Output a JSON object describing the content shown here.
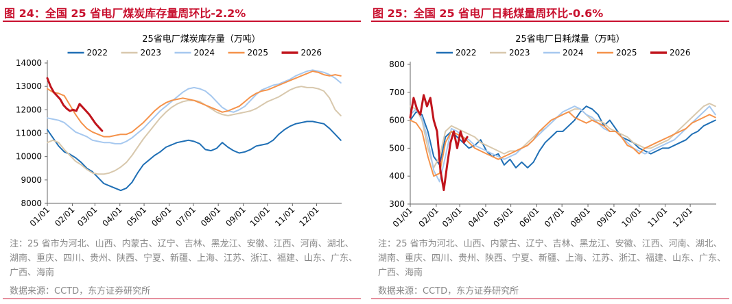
{
  "panels": [
    {
      "figure_title": "图 24：全国 25 省电厂煤炭库存量周环比-2.2%",
      "note": "注：25 省市为河北、山西、内蒙古、辽宁、吉林、黑龙江、安徽、江西、河南、湖北、湖南、重庆、四川、贵州、陕西、宁夏、新疆、上海、江苏、浙江、福建、山东、广东、广西、海南",
      "source": "数据来源：CCTD，东方证券研究所"
    },
    {
      "figure_title": "图 25：全国 25 省电厂日耗煤量周环比-0.6%",
      "note": "注：25 省市为河北、山西、内蒙古、辽宁、吉林、黑龙江、安徽、江西、河南、湖北、湖南、重庆、四川、贵州、陕西、宁夏、新疆、上海、江苏、浙江、福建、山东、广东、广西、海南",
      "source": "数据来源：CCTD，东方证券研究所"
    }
  ],
  "chart_data": [
    {
      "type": "line",
      "title": "25省电厂煤炭库存量（万吨）",
      "xlabel": "",
      "ylabel": "",
      "ylim": [
        8000,
        14000
      ],
      "yticks": [
        8000,
        9000,
        10000,
        11000,
        12000,
        13000,
        14000
      ],
      "xlim": [
        0,
        365
      ],
      "x_tick_labels": [
        "01/01",
        "02/01",
        "03/01",
        "04/01",
        "05/01",
        "06/01",
        "07/01",
        "08/01",
        "09/01",
        "10/01",
        "11/01",
        "12/01"
      ],
      "x_tick_days": [
        0,
        31,
        59,
        90,
        120,
        151,
        181,
        212,
        243,
        273,
        304,
        334
      ],
      "grid": false,
      "legend_position": "top",
      "series": [
        {
          "name": "2022",
          "color": "#1f6fb5",
          "x": [
            0,
            7,
            14,
            21,
            28,
            35,
            42,
            49,
            56,
            63,
            70,
            77,
            84,
            91,
            98,
            105,
            112,
            119,
            126,
            133,
            140,
            147,
            154,
            161,
            168,
            175,
            182,
            189,
            196,
            203,
            210,
            217,
            224,
            231,
            238,
            245,
            252,
            259,
            266,
            273,
            280,
            287,
            294,
            301,
            308,
            315,
            322,
            329,
            336,
            343,
            350,
            357,
            364
          ],
          "y": [
            11150,
            10800,
            10450,
            10200,
            10100,
            9950,
            9750,
            9500,
            9350,
            9100,
            8850,
            8750,
            8650,
            8550,
            8650,
            8900,
            9300,
            9650,
            9850,
            10050,
            10200,
            10400,
            10500,
            10600,
            10650,
            10700,
            10650,
            10550,
            10300,
            10250,
            10350,
            10600,
            10400,
            10250,
            10150,
            10200,
            10300,
            10450,
            10500,
            10550,
            10700,
            10950,
            11150,
            11300,
            11400,
            11450,
            11500,
            11500,
            11450,
            11400,
            11200,
            10950,
            10700
          ]
        },
        {
          "name": "2023",
          "color": "#d8c8ad",
          "x": [
            0,
            7,
            14,
            21,
            28,
            35,
            42,
            49,
            56,
            63,
            70,
            77,
            84,
            91,
            98,
            105,
            112,
            119,
            126,
            133,
            140,
            147,
            154,
            161,
            168,
            175,
            182,
            189,
            196,
            203,
            210,
            217,
            224,
            231,
            238,
            245,
            252,
            259,
            266,
            273,
            280,
            287,
            294,
            301,
            308,
            315,
            322,
            329,
            336,
            343,
            350,
            357,
            364
          ],
          "y": [
            10600,
            10700,
            10600,
            10300,
            10050,
            9800,
            9650,
            9450,
            9300,
            9250,
            9250,
            9300,
            9400,
            9550,
            9750,
            10050,
            10400,
            10750,
            11050,
            11350,
            11650,
            11900,
            12100,
            12250,
            12350,
            12400,
            12400,
            12350,
            12200,
            12050,
            11900,
            11800,
            11750,
            11800,
            11850,
            11900,
            11950,
            12050,
            12200,
            12350,
            12450,
            12550,
            12700,
            12850,
            12950,
            13000,
            12950,
            12950,
            12900,
            12800,
            12500,
            12000,
            11750
          ]
        },
        {
          "name": "2024",
          "color": "#a6c8ef",
          "x": [
            0,
            7,
            14,
            21,
            28,
            35,
            42,
            49,
            56,
            63,
            70,
            77,
            84,
            91,
            98,
            105,
            112,
            119,
            126,
            133,
            140,
            147,
            154,
            161,
            168,
            175,
            182,
            189,
            196,
            203,
            210,
            217,
            224,
            231,
            238,
            245,
            252,
            259,
            266,
            273,
            280,
            287,
            294,
            301,
            308,
            315,
            322,
            329,
            336,
            343,
            350,
            357,
            364
          ],
          "y": [
            11650,
            11600,
            11550,
            11450,
            11250,
            11050,
            10950,
            10850,
            10700,
            10650,
            10600,
            10600,
            10550,
            10550,
            10650,
            10800,
            11000,
            11200,
            11450,
            11700,
            11950,
            12150,
            12350,
            12550,
            12750,
            12900,
            12950,
            12900,
            12800,
            12600,
            12350,
            12100,
            11950,
            11900,
            12000,
            12150,
            12400,
            12650,
            12850,
            12950,
            13050,
            13100,
            13200,
            13300,
            13450,
            13550,
            13650,
            13700,
            13650,
            13600,
            13500,
            13350,
            13150
          ]
        },
        {
          "name": "2025",
          "color": "#f5924a",
          "x": [
            0,
            7,
            14,
            21,
            28,
            35,
            42,
            49,
            56,
            63,
            70,
            77,
            84,
            91,
            98,
            105,
            112,
            119,
            126,
            133,
            140,
            147,
            154,
            161,
            168,
            175,
            182,
            189,
            196,
            203,
            210,
            217,
            224,
            231,
            238,
            245,
            252,
            259,
            266,
            273,
            280,
            287,
            294,
            301,
            308,
            315,
            322,
            329,
            336,
            343,
            350,
            357,
            364
          ],
          "y": [
            12900,
            12750,
            12700,
            12600,
            12200,
            11800,
            11450,
            11200,
            11050,
            10950,
            10850,
            10850,
            10900,
            10950,
            10950,
            11050,
            11250,
            11450,
            11700,
            11950,
            12150,
            12300,
            12400,
            12450,
            12500,
            12450,
            12400,
            12300,
            12200,
            12100,
            12000,
            11900,
            11950,
            12050,
            12150,
            12350,
            12550,
            12700,
            12800,
            12850,
            12950,
            13050,
            13150,
            13250,
            13350,
            13450,
            13550,
            13650,
            13600,
            13500,
            13450,
            13500,
            13450
          ]
        },
        {
          "name": "2026",
          "color": "#c0141c",
          "bold": true,
          "x": [
            0,
            4,
            8,
            12,
            16,
            20,
            24,
            28,
            32,
            36,
            40,
            44,
            48,
            52,
            56,
            60,
            64,
            68
          ],
          "y": [
            13350,
            13000,
            12750,
            12600,
            12450,
            12200,
            12050,
            11950,
            12000,
            11950,
            12250,
            12100,
            11950,
            11800,
            11600,
            11400,
            11250,
            11100
          ]
        }
      ]
    },
    {
      "type": "line",
      "title": "25省电厂日耗煤量（万吨）",
      "xlabel": "",
      "ylabel": "",
      "ylim": [
        300,
        800
      ],
      "yticks": [
        300,
        400,
        500,
        600,
        700,
        800
      ],
      "xlim": [
        0,
        365
      ],
      "x_tick_labels": [
        "01/01",
        "02/01",
        "03/01",
        "04/01",
        "05/01",
        "06/01",
        "07/01",
        "08/01",
        "09/01",
        "10/01",
        "11/01",
        "12/01"
      ],
      "x_tick_days": [
        0,
        31,
        59,
        90,
        120,
        151,
        181,
        212,
        243,
        273,
        304,
        334
      ],
      "grid": false,
      "legend_position": "top",
      "series": [
        {
          "name": "2022",
          "color": "#1f6fb5",
          "x": [
            0,
            7,
            14,
            21,
            28,
            35,
            42,
            49,
            56,
            63,
            70,
            77,
            84,
            91,
            98,
            105,
            112,
            119,
            126,
            133,
            140,
            147,
            154,
            161,
            168,
            175,
            182,
            189,
            196,
            203,
            210,
            217,
            224,
            231,
            238,
            245,
            252,
            259,
            266,
            273,
            280,
            287,
            294,
            301,
            308,
            315,
            322,
            329,
            336,
            343,
            350,
            357,
            364
          ],
          "y": [
            600,
            630,
            620,
            560,
            470,
            440,
            540,
            560,
            540,
            520,
            500,
            510,
            530,
            490,
            470,
            480,
            440,
            460,
            430,
            450,
            430,
            450,
            490,
            520,
            540,
            560,
            560,
            580,
            600,
            630,
            650,
            640,
            620,
            580,
            600,
            570,
            540,
            530,
            520,
            500,
            490,
            480,
            490,
            500,
            500,
            510,
            520,
            530,
            550,
            560,
            580,
            590,
            600
          ]
        },
        {
          "name": "2023",
          "color": "#d8c8ad",
          "x": [
            0,
            7,
            14,
            21,
            28,
            35,
            42,
            49,
            56,
            63,
            70,
            77,
            84,
            91,
            98,
            105,
            112,
            119,
            126,
            133,
            140,
            147,
            154,
            161,
            168,
            175,
            182,
            189,
            196,
            203,
            210,
            217,
            224,
            231,
            238,
            245,
            252,
            259,
            266,
            273,
            280,
            287,
            294,
            301,
            308,
            315,
            322,
            329,
            336,
            343,
            350,
            357,
            364
          ],
          "y": [
            650,
            640,
            600,
            500,
            430,
            470,
            560,
            580,
            570,
            560,
            550,
            540,
            520,
            510,
            500,
            490,
            480,
            490,
            490,
            500,
            520,
            540,
            560,
            570,
            590,
            610,
            620,
            630,
            640,
            640,
            620,
            600,
            600,
            590,
            570,
            560,
            550,
            540,
            520,
            510,
            500,
            500,
            510,
            520,
            530,
            550,
            570,
            590,
            610,
            630,
            650,
            660,
            650
          ]
        },
        {
          "name": "2024",
          "color": "#a6c8ef",
          "x": [
            0,
            7,
            14,
            21,
            28,
            35,
            42,
            49,
            56,
            63,
            70,
            77,
            84,
            91,
            98,
            105,
            112,
            119,
            126,
            133,
            140,
            147,
            154,
            161,
            168,
            175,
            182,
            189,
            196,
            203,
            210,
            217,
            224,
            231,
            238,
            245,
            252,
            259,
            266,
            273,
            280,
            287,
            294,
            301,
            308,
            315,
            322,
            329,
            336,
            343,
            350,
            357,
            364
          ],
          "y": [
            620,
            640,
            610,
            530,
            420,
            380,
            470,
            570,
            560,
            540,
            530,
            510,
            500,
            490,
            480,
            470,
            460,
            470,
            480,
            500,
            510,
            530,
            550,
            570,
            590,
            610,
            630,
            640,
            650,
            640,
            620,
            610,
            590,
            570,
            560,
            560,
            540,
            520,
            500,
            490,
            480,
            490,
            500,
            510,
            520,
            530,
            550,
            570,
            590,
            610,
            630,
            650,
            620
          ]
        },
        {
          "name": "2025",
          "color": "#f5924a",
          "x": [
            0,
            7,
            14,
            21,
            28,
            35,
            42,
            49,
            56,
            63,
            70,
            77,
            84,
            91,
            98,
            105,
            112,
            119,
            126,
            133,
            140,
            147,
            154,
            161,
            168,
            175,
            182,
            189,
            196,
            203,
            210,
            217,
            224,
            231,
            238,
            245,
            252,
            259,
            266,
            273,
            280,
            287,
            294,
            301,
            308,
            315,
            322,
            329,
            336,
            343,
            350,
            357,
            364
          ],
          "y": [
            600,
            590,
            560,
            470,
            400,
            410,
            520,
            560,
            550,
            540,
            520,
            500,
            490,
            480,
            470,
            460,
            470,
            480,
            490,
            500,
            510,
            530,
            560,
            580,
            600,
            610,
            620,
            630,
            610,
            600,
            590,
            600,
            590,
            580,
            560,
            560,
            540,
            510,
            500,
            480,
            500,
            510,
            520,
            530,
            540,
            550,
            560,
            570,
            590,
            600,
            610,
            620,
            610
          ]
        },
        {
          "name": "2026",
          "color": "#c0141c",
          "bold": true,
          "x": [
            0,
            4,
            8,
            12,
            16,
            20,
            24,
            28,
            32,
            36,
            40,
            44,
            48,
            52,
            56,
            60,
            64,
            68
          ],
          "y": [
            610,
            680,
            640,
            620,
            690,
            650,
            680,
            600,
            560,
            420,
            350,
            440,
            520,
            560,
            500,
            560,
            520,
            540
          ]
        }
      ]
    }
  ]
}
